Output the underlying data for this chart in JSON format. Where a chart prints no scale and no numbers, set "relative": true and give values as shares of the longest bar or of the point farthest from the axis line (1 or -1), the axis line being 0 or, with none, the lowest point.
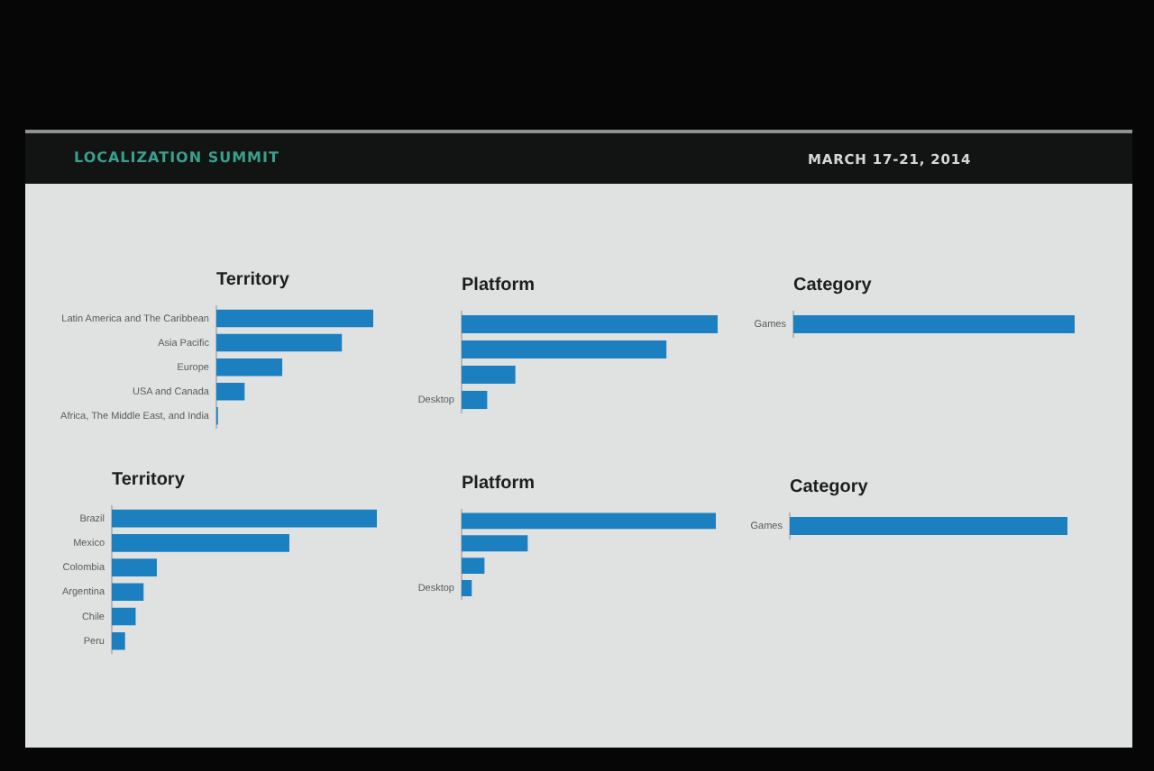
{
  "chart_data": [
    {
      "type": "other",
      "title": "LOCALIZATION SUMMIT",
      "annotations": [
        "MARCH 17-21, 2014"
      ]
    },
    {
      "type": "bar",
      "orientation": "horizontal",
      "relative": true,
      "title": "Territory",
      "categories": [
        "Latin America and The Caribbean",
        "Asia Pacific",
        "Europe",
        "USA and Canada",
        "Africa, The Middle East, and India"
      ],
      "values": [
        1,
        0.8,
        0.42,
        0.18,
        0.01
      ],
      "color": "#1b7fc0"
    },
    {
      "type": "bar",
      "orientation": "horizontal",
      "relative": true,
      "title": "Platform",
      "categories": [
        null,
        null,
        null,
        "Desktop"
      ],
      "values": [
        1,
        0.8,
        0.21,
        0.1
      ],
      "color": "#1b7fc0"
    },
    {
      "type": "bar",
      "orientation": "horizontal",
      "relative": true,
      "title": "Category",
      "categories": [
        "Games"
      ],
      "values": [
        1
      ],
      "color": "#1b7fc0"
    },
    {
      "type": "bar",
      "orientation": "horizontal",
      "relative": true,
      "title": "Territory",
      "categories": [
        "Brazil",
        "Mexico",
        "Colombia",
        "Argentina",
        "Chile",
        "Peru"
      ],
      "values": [
        1,
        0.67,
        0.17,
        0.12,
        0.09,
        0.05
      ],
      "color": "#1b7fc0"
    },
    {
      "type": "bar",
      "orientation": "horizontal",
      "relative": true,
      "title": "Platform",
      "categories": [
        null,
        null,
        null,
        "Desktop"
      ],
      "values": [
        1,
        0.26,
        0.09,
        0.04
      ],
      "color": "#1b7fc0"
    },
    {
      "type": "bar",
      "orientation": "horizontal",
      "relative": true,
      "title": "Category",
      "categories": [
        "Games"
      ],
      "values": [
        1
      ],
      "color": "#1b7fc0"
    }
  ]
}
